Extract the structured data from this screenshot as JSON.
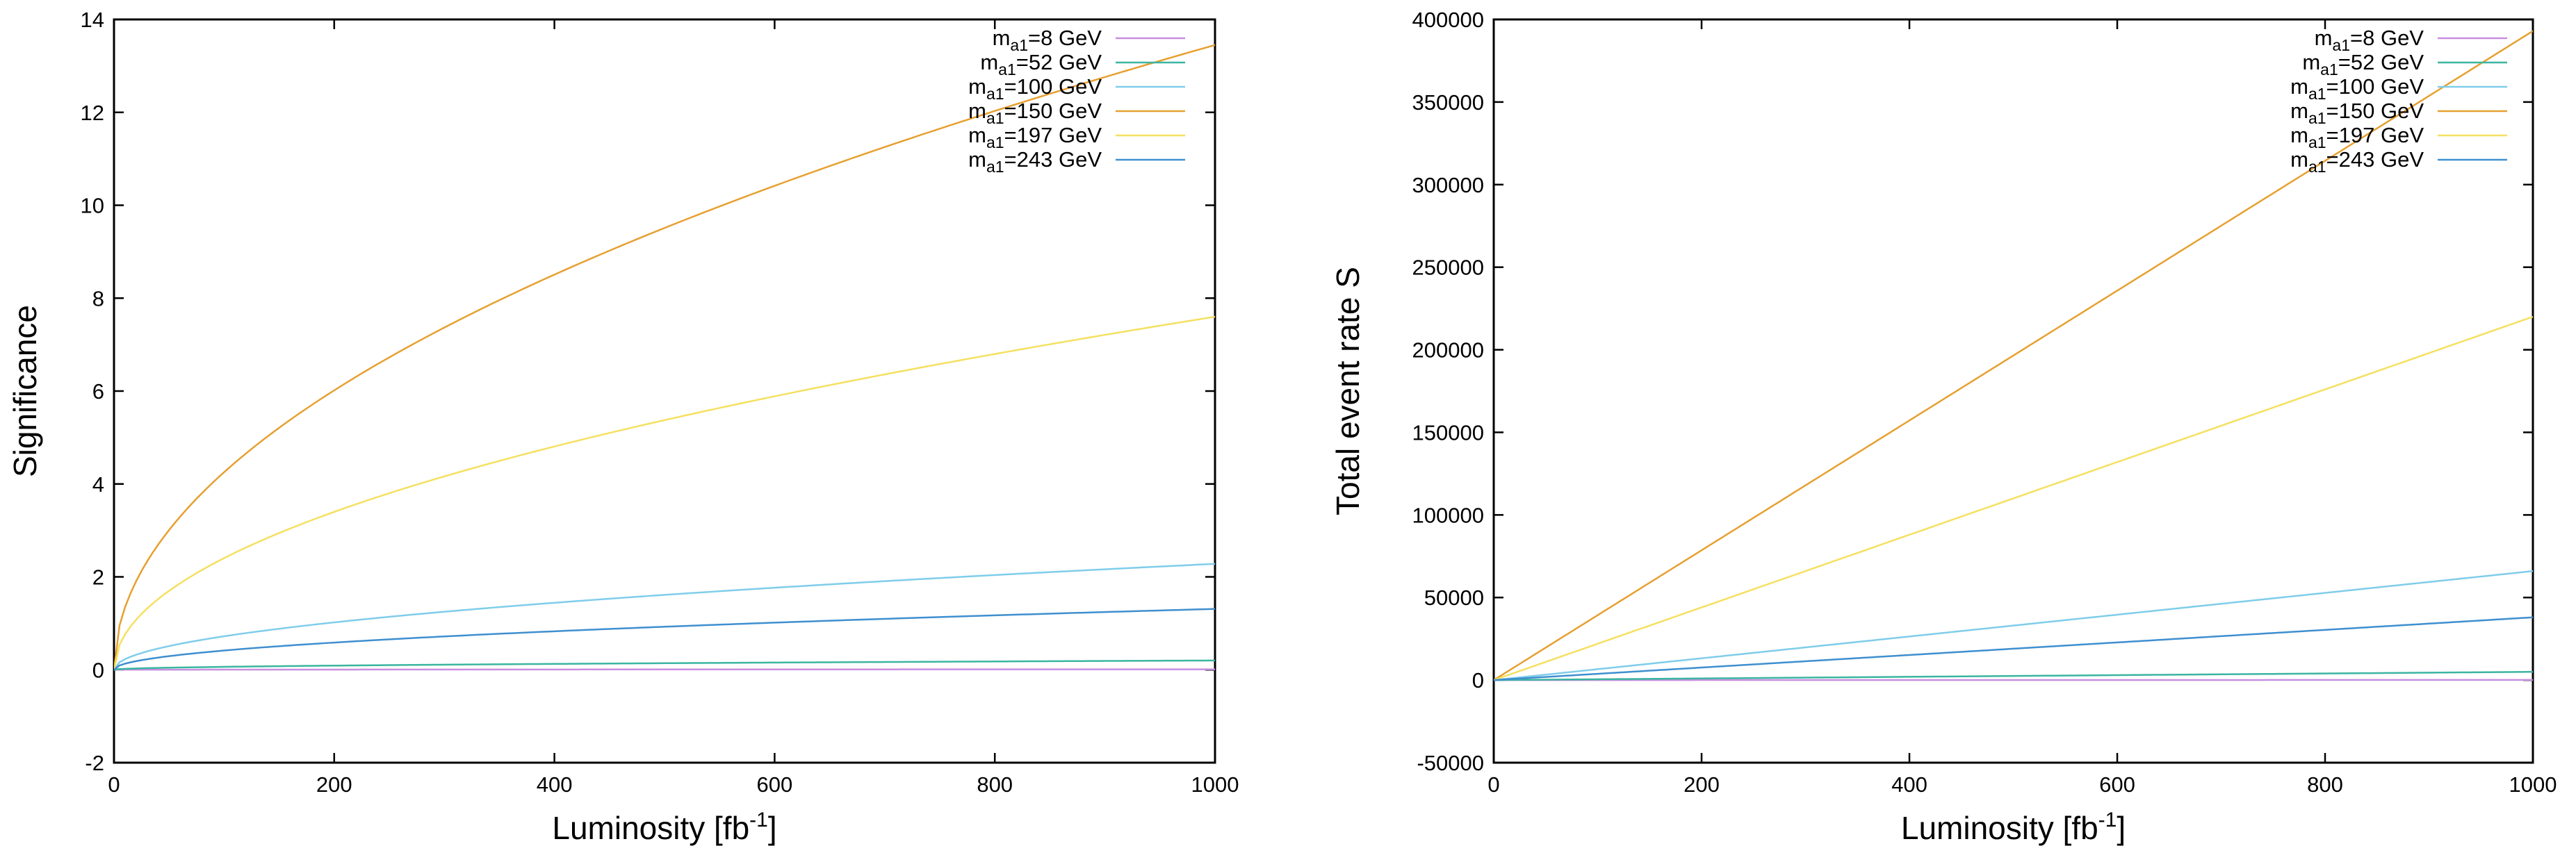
{
  "chart_data": [
    {
      "type": "line",
      "title": "",
      "xlabel": "Luminosity [fb",
      "xlabel_sup": "-1",
      "xlabel_suffix": "]",
      "ylabel": "Significance",
      "xlim": [
        0,
        1000
      ],
      "ylim": [
        -2,
        14
      ],
      "xticks": [
        0,
        200,
        400,
        600,
        800,
        1000
      ],
      "xtick_labels": [
        "0",
        "200",
        "400",
        "600",
        "800",
        "1000"
      ],
      "yticks": [
        -2,
        0,
        2,
        4,
        6,
        8,
        10,
        12,
        14
      ],
      "ytick_labels": [
        "-2",
        "0",
        "2",
        "4",
        "6",
        "8",
        "10",
        "12",
        "14"
      ],
      "grid": false,
      "legend_position": "top-right",
      "model": "sqrt",
      "series": [
        {
          "name": "m",
          "sub": "a1",
          "name_suffix": "=8 GeV",
          "color": "#c88ee0",
          "x": [
            0,
            1000
          ],
          "y": [
            0,
            0.01
          ]
        },
        {
          "name": "m",
          "sub": "a1",
          "name_suffix": "=52 GeV",
          "color": "#3bb5a0",
          "x": [
            0,
            1000
          ],
          "y": [
            0,
            0.2
          ]
        },
        {
          "name": "m",
          "sub": "a1",
          "name_suffix": "=100 GeV",
          "color": "#7fcdea",
          "x": [
            0,
            1000
          ],
          "y": [
            0,
            2.28
          ]
        },
        {
          "name": "m",
          "sub": "a1",
          "name_suffix": "=150 GeV",
          "color": "#e6a030",
          "x": [
            0,
            1000
          ],
          "y": [
            0,
            13.45
          ]
        },
        {
          "name": "m",
          "sub": "a1",
          "name_suffix": "=197 GeV",
          "color": "#f5e060",
          "x": [
            0,
            1000
          ],
          "y": [
            0,
            7.6
          ]
        },
        {
          "name": "m",
          "sub": "a1",
          "name_suffix": "=243 GeV",
          "color": "#3f8fcf",
          "x": [
            0,
            1000
          ],
          "y": [
            0,
            1.31
          ]
        }
      ]
    },
    {
      "type": "line",
      "title": "",
      "xlabel": "Luminosity [fb",
      "xlabel_sup": "-1",
      "xlabel_suffix": "]",
      "ylabel": "Total event rate S",
      "xlim": [
        0,
        1000
      ],
      "ylim": [
        -50000,
        400000
      ],
      "xticks": [
        0,
        200,
        400,
        600,
        800,
        1000
      ],
      "xtick_labels": [
        "0",
        "200",
        "400",
        "600",
        "800",
        "1000"
      ],
      "yticks": [
        -50000,
        0,
        50000,
        100000,
        150000,
        200000,
        250000,
        300000,
        350000,
        400000
      ],
      "ytick_labels": [
        "-50000",
        "0",
        "50000",
        "100000",
        "150000",
        "200000",
        "250000",
        "300000",
        "350000",
        "400000"
      ],
      "grid": false,
      "legend_position": "top-right",
      "model": "linear",
      "series": [
        {
          "name": "m",
          "sub": "a1",
          "name_suffix": "=8 GeV",
          "color": "#c88ee0",
          "x": [
            0,
            1000
          ],
          "y": [
            0,
            100
          ]
        },
        {
          "name": "m",
          "sub": "a1",
          "name_suffix": "=52 GeV",
          "color": "#3bb5a0",
          "x": [
            0,
            1000
          ],
          "y": [
            0,
            5000
          ]
        },
        {
          "name": "m",
          "sub": "a1",
          "name_suffix": "=100 GeV",
          "color": "#7fcdea",
          "x": [
            0,
            1000
          ],
          "y": [
            0,
            66000
          ]
        },
        {
          "name": "m",
          "sub": "a1",
          "name_suffix": "=150 GeV",
          "color": "#e6a030",
          "x": [
            0,
            1000
          ],
          "y": [
            0,
            393000
          ]
        },
        {
          "name": "m",
          "sub": "a1",
          "name_suffix": "=197 GeV",
          "color": "#f5e060",
          "x": [
            0,
            1000
          ],
          "y": [
            0,
            220000
          ]
        },
        {
          "name": "m",
          "sub": "a1",
          "name_suffix": "=243 GeV",
          "color": "#3f8fcf",
          "x": [
            0,
            1000
          ],
          "y": [
            0,
            38000
          ]
        }
      ]
    }
  ]
}
